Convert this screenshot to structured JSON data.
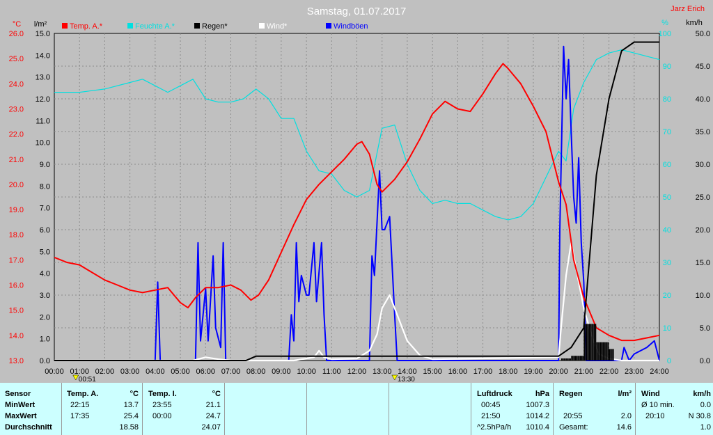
{
  "colors": {
    "temp": "#ff0000",
    "humidity": "#00e0e0",
    "rain": "#000000",
    "wind": "#ffffff",
    "gust": "#0000ff",
    "background": "#c0c0c0",
    "panel": "#ccffff"
  },
  "chart_data": {
    "type": "line",
    "title": "Samstag, 01.07.2017",
    "credit": "Jarz Erich",
    "legend": [
      "Temp. A.*",
      "Feuchte A.*",
      "Regen*",
      "Wind*",
      "Windböen"
    ],
    "axes": {
      "temp": {
        "unit": "°C",
        "range": [
          13.0,
          26.0
        ],
        "ticks": [
          "13.0",
          "14.0",
          "15.0",
          "16.0",
          "17.0",
          "18.0",
          "19.0",
          "20.0",
          "21.0",
          "22.0",
          "23.0",
          "24.0",
          "25.0",
          "26.0"
        ]
      },
      "rain": {
        "unit": "l/m²",
        "range": [
          0.0,
          15.0
        ],
        "ticks": [
          "0.0",
          "1.0",
          "2.0",
          "3.0",
          "4.0",
          "5.0",
          "6.0",
          "7.0",
          "8.0",
          "9.0",
          "10.0",
          "11.0",
          "12.0",
          "13.0",
          "14.0",
          "15.0"
        ]
      },
      "humidity": {
        "unit": "%",
        "range": [
          0,
          100
        ],
        "ticks": [
          "0",
          "10",
          "20",
          "30",
          "40",
          "50",
          "60",
          "70",
          "80",
          "90",
          "100"
        ]
      },
      "wind": {
        "unit": "km/h",
        "range": [
          0.0,
          50.0
        ],
        "ticks": [
          "0.0",
          "5.0",
          "10.0",
          "15.0",
          "20.0",
          "25.0",
          "30.0",
          "35.0",
          "40.0",
          "45.0",
          "50.0"
        ]
      },
      "time": {
        "ticks": [
          "00:00",
          "01:00",
          "02:00",
          "03:00",
          "04:00",
          "05:00",
          "06:00",
          "07:00",
          "08:00",
          "09:00",
          "10:00",
          "11:00",
          "12:00",
          "13:00",
          "14:00",
          "15:00",
          "16:00",
          "17:00",
          "18:00",
          "19:00",
          "20:00",
          "21:00",
          "22:00",
          "23:00",
          "24:00"
        ]
      }
    },
    "markers": [
      "00:51",
      "13:30"
    ],
    "series": [
      {
        "name": "Temp. A.*",
        "axis": "temp",
        "points": [
          [
            0,
            17.1
          ],
          [
            0.5,
            16.9
          ],
          [
            1,
            16.8
          ],
          [
            1.5,
            16.5
          ],
          [
            2,
            16.2
          ],
          [
            2.5,
            16.0
          ],
          [
            3,
            15.8
          ],
          [
            3.5,
            15.7
          ],
          [
            4,
            15.8
          ],
          [
            4.5,
            15.9
          ],
          [
            5,
            15.3
          ],
          [
            5.3,
            15.1
          ],
          [
            5.6,
            15.5
          ],
          [
            6,
            15.9
          ],
          [
            6.5,
            15.9
          ],
          [
            7,
            16.0
          ],
          [
            7.4,
            15.8
          ],
          [
            7.8,
            15.4
          ],
          [
            8.1,
            15.6
          ],
          [
            8.5,
            16.2
          ],
          [
            9,
            17.3
          ],
          [
            9.5,
            18.4
          ],
          [
            10,
            19.4
          ],
          [
            10.5,
            20.0
          ],
          [
            11,
            20.5
          ],
          [
            11.5,
            21.0
          ],
          [
            12,
            21.6
          ],
          [
            12.2,
            21.7
          ],
          [
            12.5,
            21.2
          ],
          [
            12.8,
            20.0
          ],
          [
            13,
            19.7
          ],
          [
            13.5,
            20.2
          ],
          [
            14,
            20.9
          ],
          [
            14.5,
            21.8
          ],
          [
            15,
            22.8
          ],
          [
            15.5,
            23.3
          ],
          [
            16,
            23.0
          ],
          [
            16.5,
            22.9
          ],
          [
            17,
            23.6
          ],
          [
            17.5,
            24.4
          ],
          [
            17.8,
            24.8
          ],
          [
            18,
            24.6
          ],
          [
            18.5,
            24.0
          ],
          [
            19,
            23.1
          ],
          [
            19.5,
            22.1
          ],
          [
            20,
            20.1
          ],
          [
            20.3,
            19.2
          ],
          [
            20.6,
            17.0
          ],
          [
            21,
            15.5
          ],
          [
            21.5,
            14.3
          ],
          [
            22,
            14.0
          ],
          [
            22.5,
            13.8
          ],
          [
            23,
            13.8
          ],
          [
            23.5,
            13.9
          ],
          [
            24,
            14.0
          ]
        ]
      },
      {
        "name": "Feuchte A.*",
        "axis": "humidity",
        "points": [
          [
            0,
            82
          ],
          [
            1,
            82
          ],
          [
            2,
            83
          ],
          [
            3,
            85
          ],
          [
            3.5,
            86
          ],
          [
            4,
            84
          ],
          [
            4.5,
            82
          ],
          [
            5,
            84
          ],
          [
            5.5,
            86
          ],
          [
            6,
            80
          ],
          [
            6.5,
            79
          ],
          [
            7,
            79
          ],
          [
            7.5,
            80
          ],
          [
            8,
            83
          ],
          [
            8.5,
            80
          ],
          [
            9,
            74
          ],
          [
            9.5,
            74
          ],
          [
            10,
            64
          ],
          [
            10.5,
            58
          ],
          [
            11,
            57
          ],
          [
            11.5,
            52
          ],
          [
            12,
            50
          ],
          [
            12.5,
            52
          ],
          [
            13,
            71
          ],
          [
            13.5,
            72
          ],
          [
            14,
            60
          ],
          [
            14.5,
            52
          ],
          [
            15,
            48
          ],
          [
            15.5,
            49
          ],
          [
            16,
            48
          ],
          [
            16.5,
            48
          ],
          [
            17,
            46
          ],
          [
            17.5,
            44
          ],
          [
            18,
            43
          ],
          [
            18.5,
            44
          ],
          [
            19,
            48
          ],
          [
            19.5,
            56
          ],
          [
            20,
            64
          ],
          [
            20.3,
            61
          ],
          [
            20.6,
            77
          ],
          [
            21,
            85
          ],
          [
            21.5,
            92
          ],
          [
            22,
            94
          ],
          [
            22.5,
            95
          ],
          [
            23,
            94
          ],
          [
            24,
            92
          ]
        ]
      },
      {
        "name": "Regen*",
        "axis": "rain",
        "points": [
          [
            0,
            0
          ],
          [
            7.6,
            0
          ],
          [
            7.8,
            0.1
          ],
          [
            8,
            0.2
          ],
          [
            20,
            0.2
          ],
          [
            20.5,
            0.6
          ],
          [
            21,
            1.5
          ],
          [
            21.5,
            8.5
          ],
          [
            22,
            12.0
          ],
          [
            22.5,
            14.2
          ],
          [
            23,
            14.6
          ],
          [
            24,
            14.6
          ]
        ]
      },
      {
        "name": "Wind*",
        "axis": "wind",
        "points": [
          [
            0,
            0
          ],
          [
            5.5,
            0
          ],
          [
            6,
            0.5
          ],
          [
            6.5,
            0.2
          ],
          [
            7,
            0
          ],
          [
            9.5,
            0
          ],
          [
            10.3,
            0.5
          ],
          [
            10.5,
            1.5
          ],
          [
            10.7,
            0.5
          ],
          [
            11,
            0.2
          ],
          [
            12,
            0.3
          ],
          [
            12.5,
            1.5
          ],
          [
            12.8,
            4
          ],
          [
            13,
            8
          ],
          [
            13.3,
            10
          ],
          [
            13.6,
            7
          ],
          [
            14,
            3
          ],
          [
            14.5,
            0.8
          ],
          [
            15,
            0.2
          ],
          [
            20,
            0.5
          ],
          [
            20.1,
            5
          ],
          [
            20.3,
            13
          ],
          [
            20.5,
            18
          ],
          [
            20.7,
            14
          ],
          [
            21,
            8
          ],
          [
            21.3,
            4
          ],
          [
            21.6,
            1
          ],
          [
            22,
            0.3
          ],
          [
            22.5,
            0
          ],
          [
            24,
            0
          ]
        ]
      },
      {
        "name": "Windböen",
        "axis": "wind",
        "points": [
          [
            0,
            0
          ],
          [
            4,
            0
          ],
          [
            4.1,
            12
          ],
          [
            4.2,
            0
          ],
          [
            5.6,
            0
          ],
          [
            5.7,
            18
          ],
          [
            5.8,
            3
          ],
          [
            6,
            11
          ],
          [
            6.1,
            3
          ],
          [
            6.3,
            16
          ],
          [
            6.4,
            5
          ],
          [
            6.6,
            2
          ],
          [
            6.7,
            18
          ],
          [
            6.8,
            0
          ],
          [
            9.3,
            0
          ],
          [
            9.4,
            7
          ],
          [
            9.5,
            3
          ],
          [
            9.6,
            18
          ],
          [
            9.7,
            9
          ],
          [
            9.8,
            13
          ],
          [
            10,
            10
          ],
          [
            10.1,
            10
          ],
          [
            10.3,
            18
          ],
          [
            10.4,
            9
          ],
          [
            10.6,
            18
          ],
          [
            10.7,
            7
          ],
          [
            10.8,
            0
          ],
          [
            12.5,
            0
          ],
          [
            12.6,
            16
          ],
          [
            12.7,
            13
          ],
          [
            12.9,
            29
          ],
          [
            13,
            20
          ],
          [
            13.1,
            20
          ],
          [
            13.3,
            22
          ],
          [
            13.5,
            7
          ],
          [
            13.6,
            0
          ],
          [
            20,
            0
          ],
          [
            20.05,
            20
          ],
          [
            20.2,
            48
          ],
          [
            20.3,
            40
          ],
          [
            20.4,
            46
          ],
          [
            20.5,
            35
          ],
          [
            20.6,
            25
          ],
          [
            20.7,
            21
          ],
          [
            20.8,
            31
          ],
          [
            20.9,
            18
          ],
          [
            21,
            12
          ],
          [
            21.1,
            0
          ],
          [
            22.5,
            0
          ],
          [
            22.6,
            2
          ],
          [
            22.8,
            0
          ],
          [
            23,
            1
          ],
          [
            23.5,
            2
          ],
          [
            23.8,
            3
          ],
          [
            24,
            0
          ]
        ]
      }
    ]
  },
  "panel": {
    "sensor": {
      "title": "Sensor",
      "rows": [
        "MinWert",
        "MaxWert",
        "Durchschnitt"
      ]
    },
    "temp_a": {
      "title": "Temp. A.",
      "unit": "°C",
      "rows": [
        [
          "22:15",
          "13.7"
        ],
        [
          "17:35",
          "25.4"
        ],
        [
          "",
          "18.58"
        ]
      ]
    },
    "temp_i": {
      "title": "Temp. I.",
      "unit": "°C",
      "rows": [
        [
          "23:55",
          "21.1"
        ],
        [
          "00:00",
          "24.7"
        ],
        [
          "",
          "24.07"
        ]
      ]
    },
    "pressure": {
      "title": "Luftdruck",
      "unit": "hPa",
      "rows": [
        [
          "00:45",
          "1007.3"
        ],
        [
          "21:50",
          "1014.2"
        ],
        [
          "^2.5hPa/h",
          "1010.4"
        ]
      ]
    },
    "rain": {
      "title": "Regen",
      "unit": "l/m²",
      "rows": [
        [
          "",
          ""
        ],
        [
          "20:55",
          "2.0"
        ],
        [
          "Gesamt:",
          "14.6"
        ]
      ]
    },
    "wind": {
      "title": "Wind",
      "unit": "km/h",
      "rows": [
        [
          "Ø 10 min.",
          "0.0"
        ],
        [
          "20:10",
          "N 30.8"
        ],
        [
          "",
          "1.0"
        ]
      ]
    }
  }
}
